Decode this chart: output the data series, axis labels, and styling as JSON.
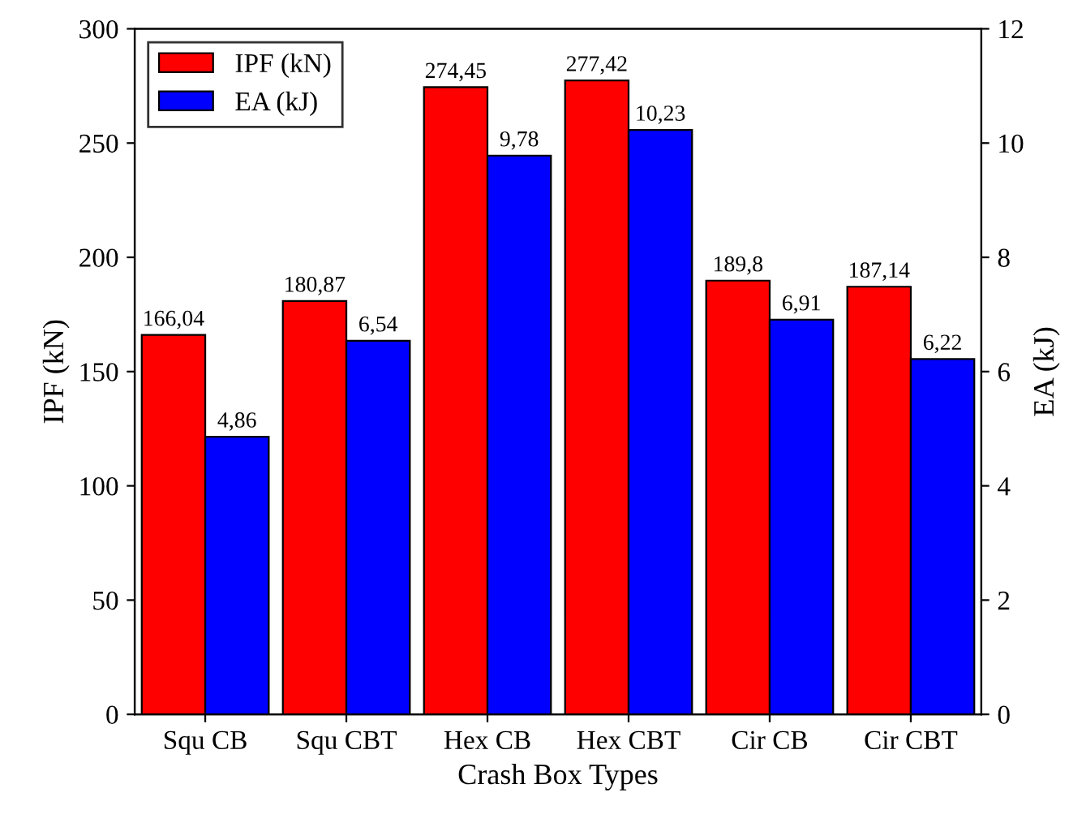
{
  "chart_data": {
    "type": "bar",
    "xlabel": "Crash Box Types",
    "ylabel": "IPF (kN)",
    "y2label": "EA (kJ)",
    "categories": [
      "Squ CB",
      "Squ CBT",
      "Hex CB",
      "Hex CBT",
      "Cir CB",
      "Cir CBT"
    ],
    "series": [
      {
        "name": "IPF (kN)",
        "color": "#ff0000",
        "values": [
          166.04,
          180.87,
          274.45,
          277.42,
          189.8,
          187.14
        ],
        "value_labels": [
          "166,04",
          "180,87",
          "274,45",
          "277,42",
          "189,8",
          "187,14"
        ]
      },
      {
        "name": "EA (kJ)",
        "color": "#0000ff",
        "axis": "y2",
        "values": [
          4.86,
          6.54,
          9.78,
          10.23,
          6.91,
          6.22
        ],
        "value_labels": [
          "4,86",
          "6,54",
          "9,78",
          "10,23",
          "6,91",
          "6,22"
        ]
      }
    ],
    "ylim": [
      0,
      300
    ],
    "yticks": [
      0,
      50,
      100,
      150,
      200,
      250,
      300
    ],
    "y2lim": [
      0,
      12
    ],
    "y2ticks": [
      0,
      2,
      4,
      6,
      8,
      10,
      12
    ],
    "legend": "top left",
    "grid": false
  }
}
